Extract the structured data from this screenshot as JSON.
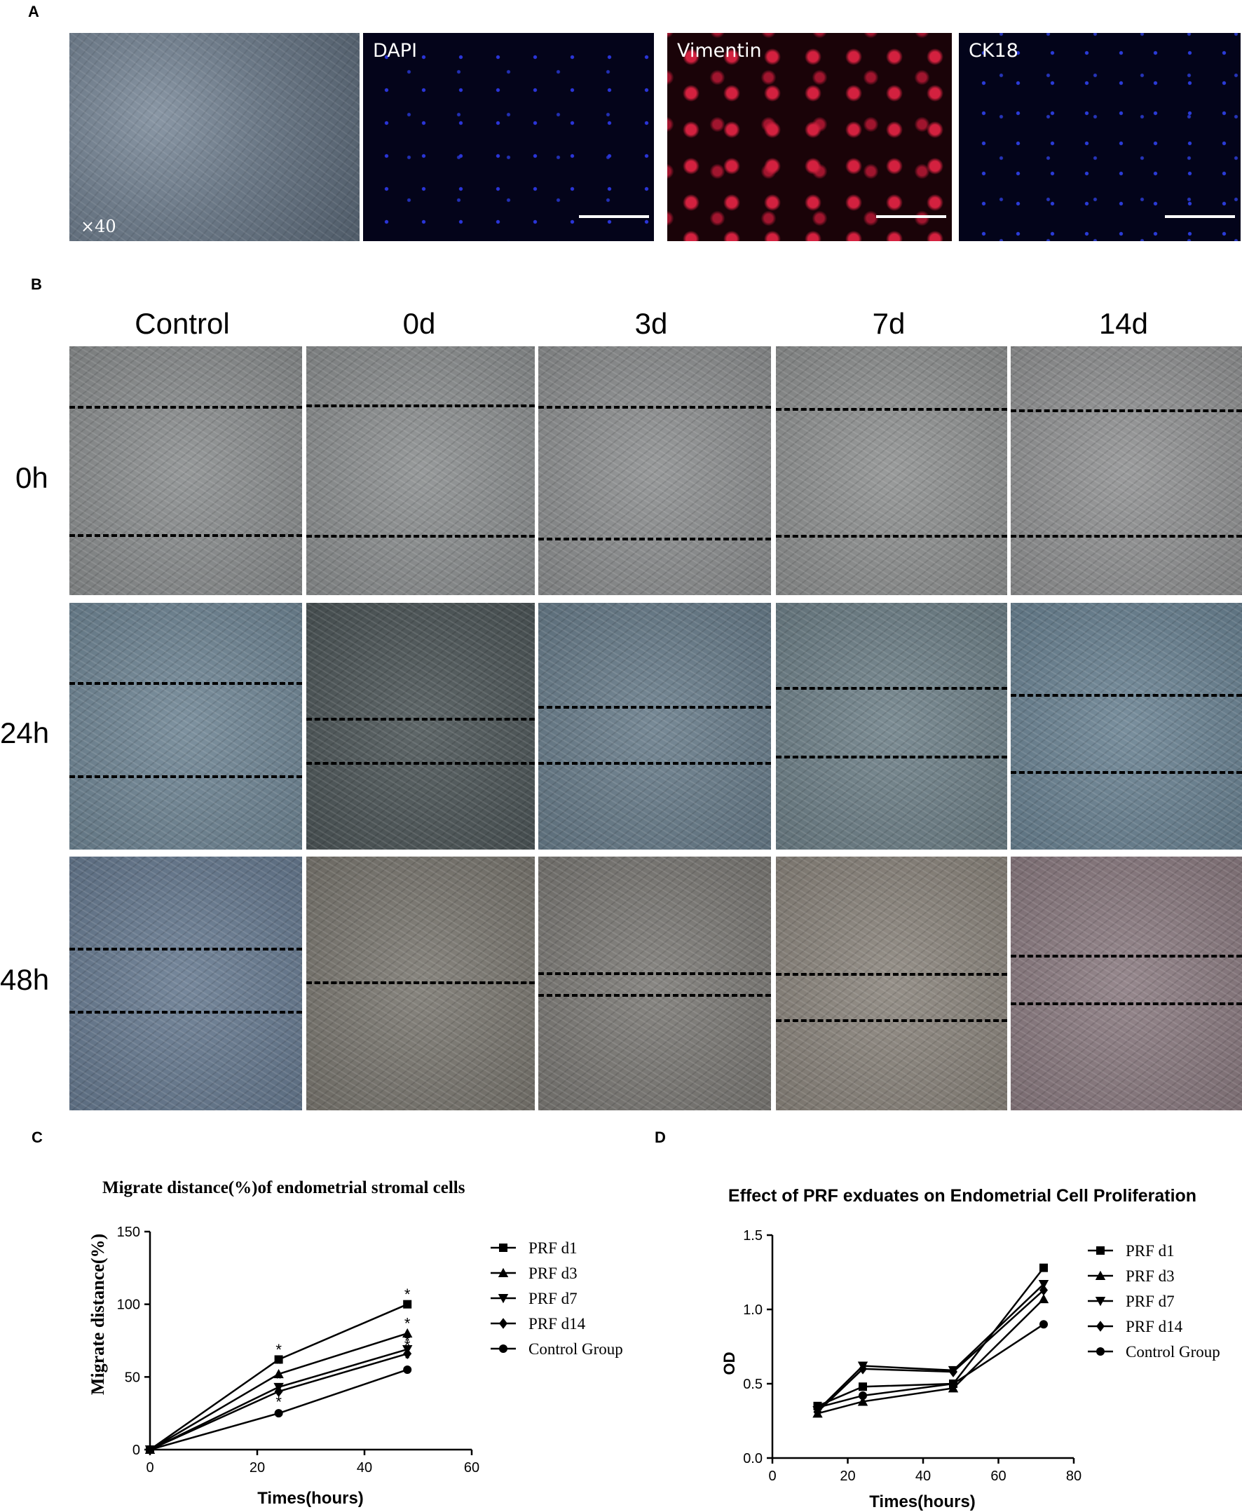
{
  "panels": {
    "a": "A",
    "b": "B",
    "c": "C",
    "d": "D"
  },
  "panel_a": {
    "images": [
      {
        "label": "",
        "magnification": "×40"
      },
      {
        "label": "DAPI"
      },
      {
        "label": "Vimentin"
      },
      {
        "label": "CK18"
      }
    ]
  },
  "panel_b": {
    "columns": [
      "Control",
      "0d",
      "3d",
      "7d",
      "14d"
    ],
    "rows": [
      "0h",
      "24h",
      "48h"
    ]
  },
  "chart_data": [
    {
      "type": "line",
      "title": "Migrate distance(%)of endometrial stromal cells",
      "xlabel": "Times(hours)",
      "ylabel": "Migrate distance(%)",
      "xlim": [
        0,
        60
      ],
      "ylim": [
        0,
        150
      ],
      "xticks": [
        0,
        20,
        40,
        60
      ],
      "yticks": [
        0,
        50,
        100,
        150
      ],
      "x": [
        0,
        24,
        48
      ],
      "legend_position": "right",
      "series": [
        {
          "name": "PRF d1",
          "marker": "square",
          "values": [
            0,
            62,
            100
          ]
        },
        {
          "name": "PRF d3",
          "marker": "triangle-up",
          "values": [
            0,
            52,
            80
          ]
        },
        {
          "name": "PRF d7",
          "marker": "triangle-down",
          "values": [
            0,
            43,
            69
          ]
        },
        {
          "name": "PRF d14",
          "marker": "diamond",
          "values": [
            0,
            40,
            66
          ]
        },
        {
          "name": "Control Group",
          "marker": "circle",
          "values": [
            0,
            25,
            55
          ]
        }
      ],
      "annotations": [
        "*"
      ]
    },
    {
      "type": "line",
      "title": "Effect of PRF exduates on Endometrial Cell Proliferation",
      "xlabel": "Times(hours)",
      "ylabel": "OD",
      "xlim": [
        0,
        80
      ],
      "ylim": [
        0,
        1.5
      ],
      "xticks": [
        0,
        20,
        40,
        60,
        80
      ],
      "yticks": [
        "0.0",
        "0.5",
        "1.0",
        "1.5"
      ],
      "x": [
        12,
        24,
        48,
        72
      ],
      "legend_position": "right",
      "series": [
        {
          "name": "PRF d1",
          "marker": "square",
          "values": [
            0.35,
            0.48,
            0.5,
            1.28
          ]
        },
        {
          "name": "PRF d3",
          "marker": "triangle-up",
          "values": [
            0.3,
            0.38,
            0.47,
            1.07
          ]
        },
        {
          "name": "PRF d7",
          "marker": "triangle-down",
          "values": [
            0.32,
            0.62,
            0.59,
            1.17
          ]
        },
        {
          "name": "PRF d14",
          "marker": "diamond",
          "values": [
            0.31,
            0.6,
            0.58,
            1.13
          ]
        },
        {
          "name": "Control Group",
          "marker": "circle",
          "values": [
            0.34,
            0.42,
            0.5,
            0.9
          ]
        }
      ]
    }
  ]
}
